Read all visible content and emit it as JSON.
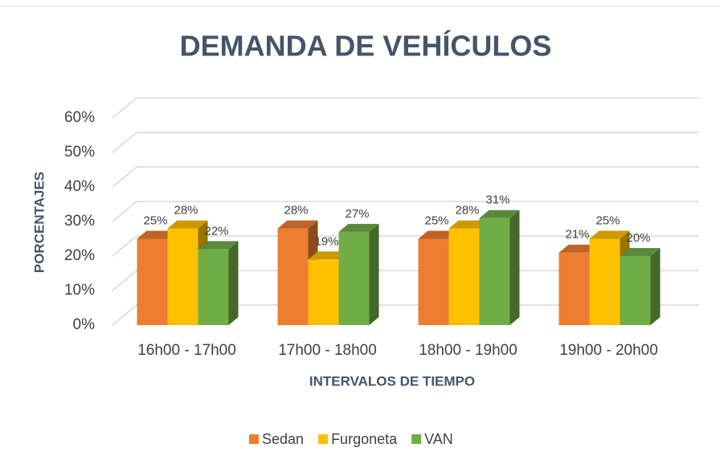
{
  "chart_data": {
    "type": "bar3d",
    "title": "DEMANDA DE VEHÍCULOS",
    "x_label": "INTERVALOS DE TIEMPO",
    "y_label": "PORCENTAJES",
    "categories": [
      "16h00 - 17h00",
      "17h00 - 18h00",
      "18h00 - 19h00",
      "19h00 - 20h00"
    ],
    "series": [
      {
        "name": "Sedan",
        "color": "#ed7d31",
        "values": [
          25,
          28,
          25,
          21
        ],
        "value_labels": [
          "25%",
          "28%",
          "25%",
          "21%"
        ]
      },
      {
        "name": "Furgoneta",
        "color": "#ffc000",
        "values": [
          28,
          19,
          28,
          25
        ],
        "value_labels": [
          "28%",
          "19%",
          "28%",
          "25%"
        ]
      },
      {
        "name": "VAN",
        "color": "#70ad47",
        "values": [
          22,
          27,
          31,
          20
        ],
        "value_labels": [
          "22%",
          "27%",
          "31%",
          "20%"
        ]
      }
    ],
    "ylim": [
      0,
      60
    ],
    "yticks": [
      {
        "value": 0,
        "label": "0%"
      },
      {
        "value": 10,
        "label": "10%"
      },
      {
        "value": 20,
        "label": "20%"
      },
      {
        "value": 30,
        "label": "30%"
      },
      {
        "value": 40,
        "label": "40%"
      },
      {
        "value": 50,
        "label": "50%"
      },
      {
        "value": 60,
        "label": "60%"
      }
    ],
    "grid": true,
    "legend": "bottom"
  }
}
